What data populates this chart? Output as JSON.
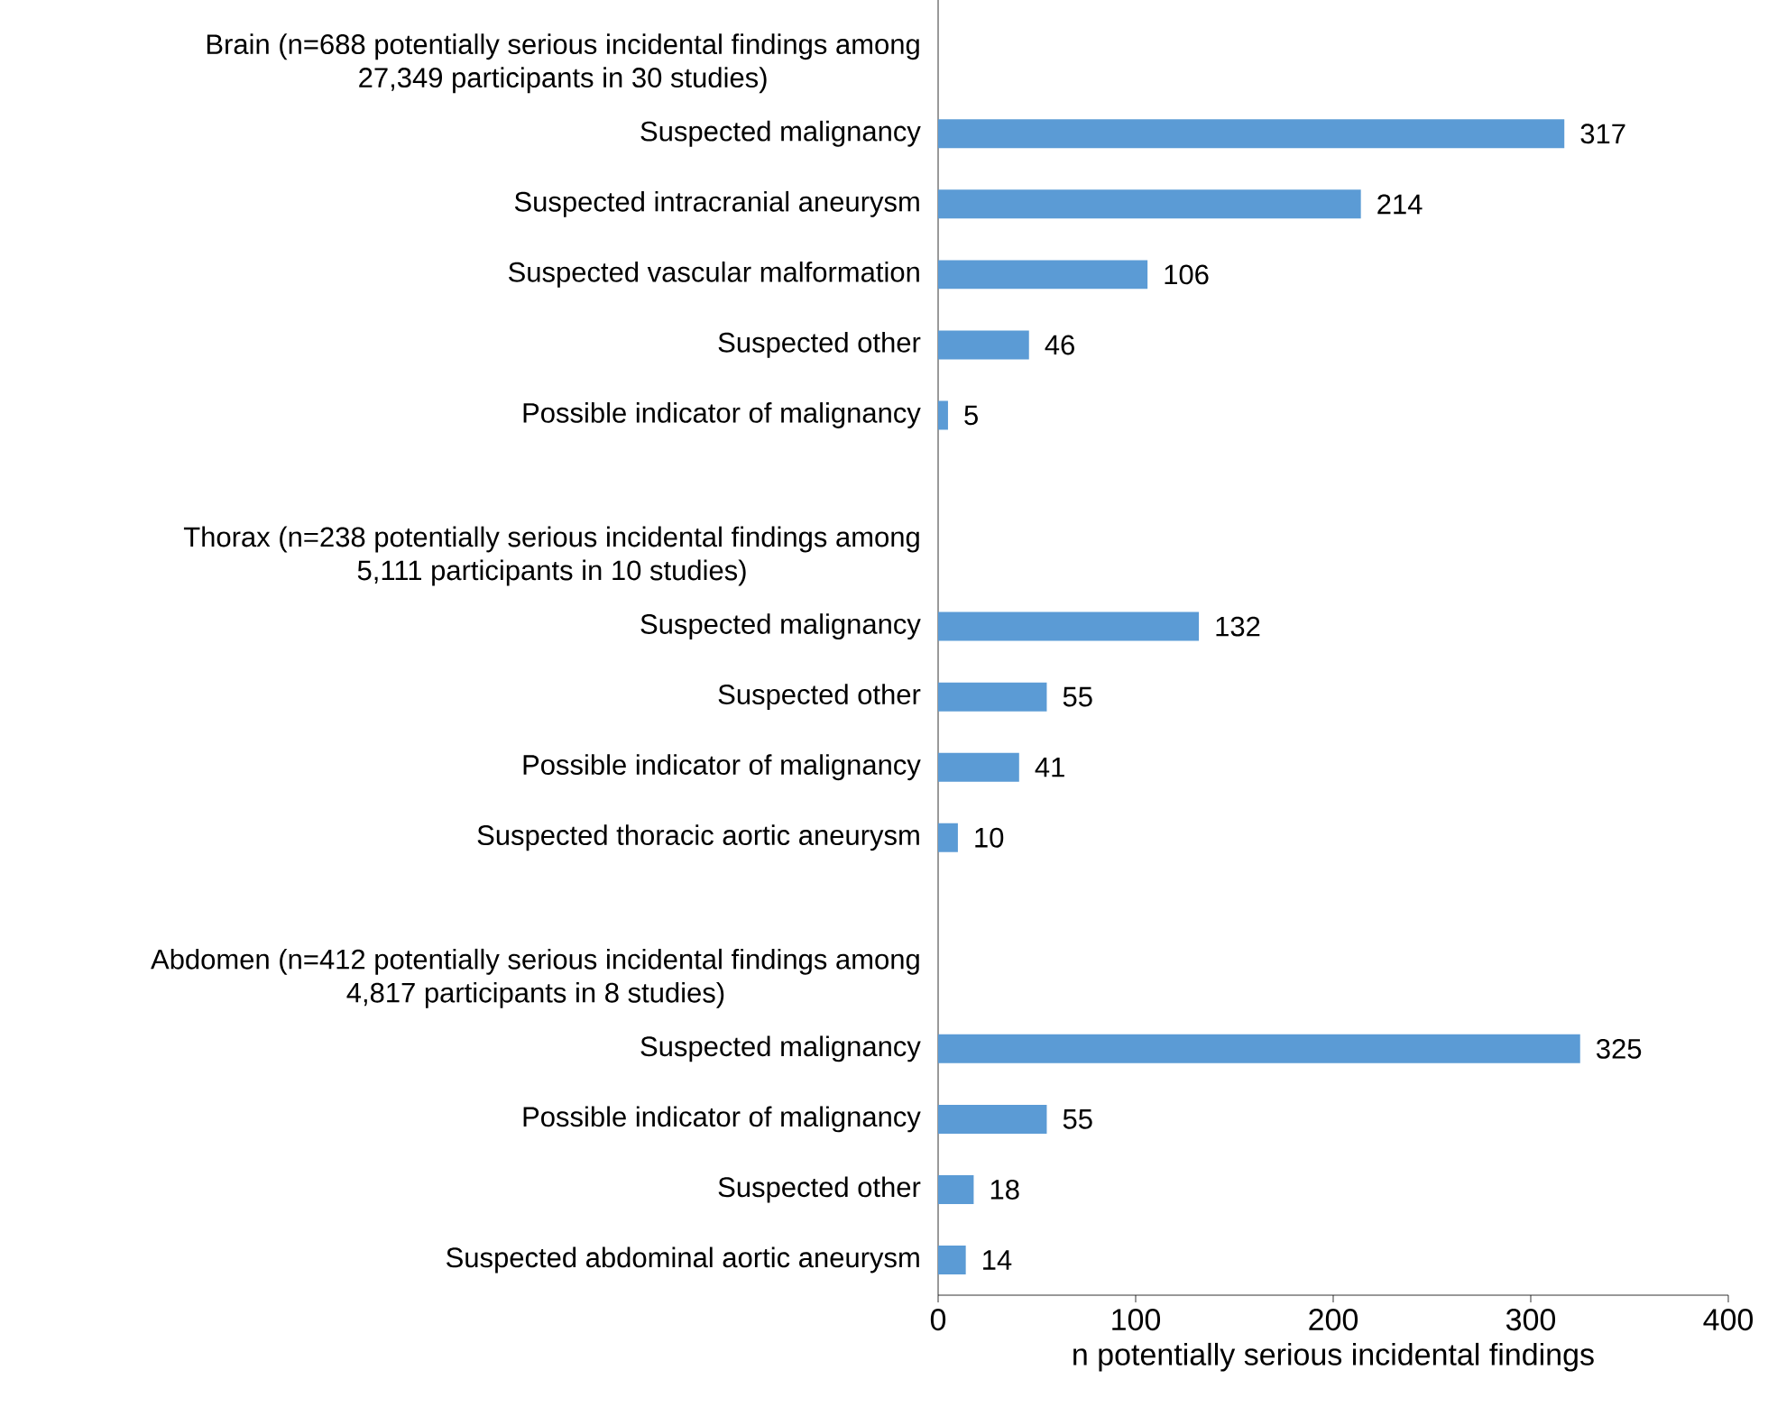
{
  "chart_data": {
    "type": "bar",
    "orientation": "horizontal",
    "categories": [
      "Brain (n=688 potentially serious incidental findings among 27,349 participants in 30 studies)",
      "Suspected malignancy",
      "Suspected intracranial aneurysm",
      "Suspected vascular malformation",
      "Suspected other",
      "Possible indicator of malignancy",
      null,
      "Thorax (n=238 potentially serious incidental findings among 5,111 participants in 10 studies)",
      "Suspected malignancy",
      "Suspected other",
      "Possible indicator of malignancy",
      "Suspected thoracic aortic aneurysm",
      null,
      "Abdomen (n=412 potentially serious incidental findings among 4,817 participants in 8 studies)",
      "Suspected malignancy",
      "Possible indicator of malignancy",
      "Suspected other",
      "Suspected abdominal aortic aneurysm"
    ],
    "values": [
      null,
      317,
      214,
      106,
      46,
      5,
      null,
      null,
      132,
      55,
      41,
      10,
      null,
      null,
      325,
      55,
      18,
      14
    ],
    "color": "#5b9bd5",
    "data_labels": true,
    "xlim": [
      0,
      400
    ],
    "xticks": [
      0,
      100,
      200,
      300,
      400
    ],
    "xlabel": "n potentially serious incidental findings"
  }
}
